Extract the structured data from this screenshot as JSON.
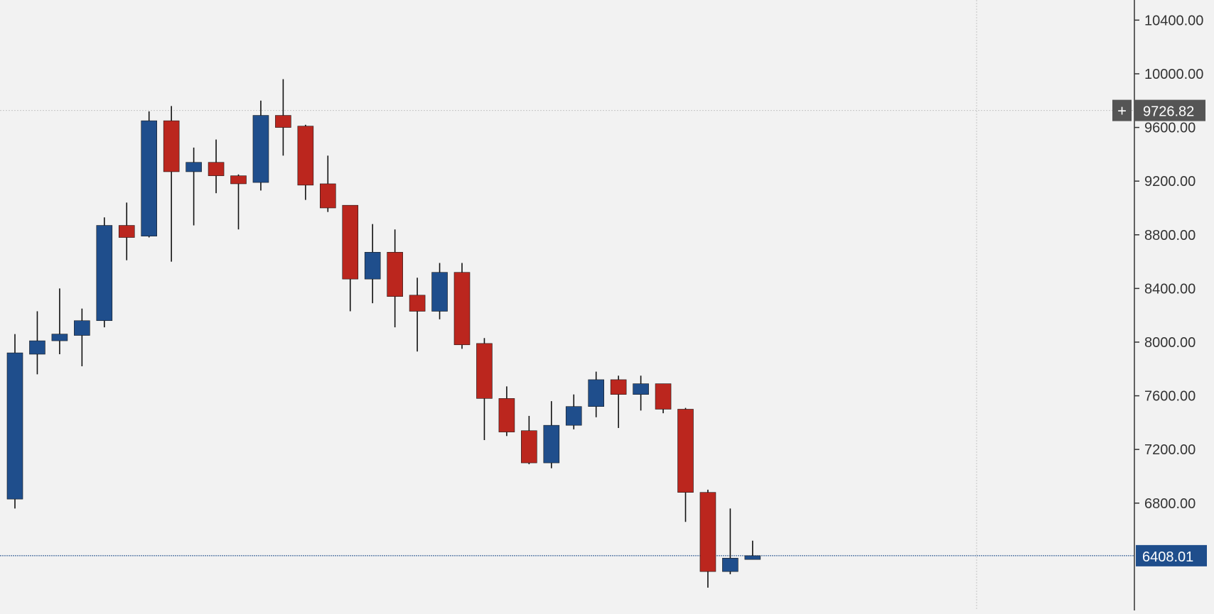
{
  "chart_data": {
    "type": "candlestick",
    "ylim": [
      6000,
      10550
    ],
    "y_ticks": [
      "10400.00",
      "10000.00",
      "9600.00",
      "9200.00",
      "8800.00",
      "8400.00",
      "8000.00",
      "7600.00",
      "7200.00",
      "6800.00"
    ],
    "y_tick_values": [
      10400,
      10000,
      9600,
      9200,
      8800,
      8400,
      8000,
      7600,
      7200,
      6800
    ],
    "crosshair": {
      "value": 9726.82,
      "label": "9726.82",
      "symbol": "+"
    },
    "last_price": {
      "value": 6408.01,
      "label": "6408.01"
    },
    "colors": {
      "up": "#1f4e8c",
      "down": "#bb261e",
      "wick": "#111111",
      "background": "#f2f2f2",
      "axis": "#333333",
      "last_price": "#1f4e8c",
      "crosshair_label": "#555555"
    },
    "candles": [
      {
        "open": 6830,
        "high": 8060,
        "low": 6760,
        "close": 7920
      },
      {
        "open": 7910,
        "high": 8230,
        "low": 7760,
        "close": 8010
      },
      {
        "open": 8010,
        "high": 8400,
        "low": 7910,
        "close": 8060
      },
      {
        "open": 8050,
        "high": 8250,
        "low": 7820,
        "close": 8160
      },
      {
        "open": 8160,
        "high": 8930,
        "low": 8110,
        "close": 8870
      },
      {
        "open": 8870,
        "high": 9040,
        "low": 8610,
        "close": 8780
      },
      {
        "open": 8790,
        "high": 9720,
        "low": 8780,
        "close": 9650
      },
      {
        "open": 9650,
        "high": 9760,
        "low": 8600,
        "close": 9270
      },
      {
        "open": 9270,
        "high": 9450,
        "low": 8870,
        "close": 9340
      },
      {
        "open": 9340,
        "high": 9510,
        "low": 9110,
        "close": 9240
      },
      {
        "open": 9240,
        "high": 9250,
        "low": 8840,
        "close": 9180
      },
      {
        "open": 9190,
        "high": 9800,
        "low": 9130,
        "close": 9690
      },
      {
        "open": 9690,
        "high": 9960,
        "low": 9390,
        "close": 9600
      },
      {
        "open": 9610,
        "high": 9620,
        "low": 9060,
        "close": 9170
      },
      {
        "open": 9180,
        "high": 9390,
        "low": 8970,
        "close": 9000
      },
      {
        "open": 9020,
        "high": 9020,
        "low": 8230,
        "close": 8470
      },
      {
        "open": 8470,
        "high": 8880,
        "low": 8290,
        "close": 8670
      },
      {
        "open": 8670,
        "high": 8840,
        "low": 8110,
        "close": 8340
      },
      {
        "open": 8350,
        "high": 8480,
        "low": 7930,
        "close": 8230
      },
      {
        "open": 8230,
        "high": 8590,
        "low": 8170,
        "close": 8520
      },
      {
        "open": 8520,
        "high": 8590,
        "low": 7950,
        "close": 7980
      },
      {
        "open": 7990,
        "high": 8030,
        "low": 7270,
        "close": 7580
      },
      {
        "open": 7580,
        "high": 7670,
        "low": 7300,
        "close": 7330
      },
      {
        "open": 7340,
        "high": 7450,
        "low": 7090,
        "close": 7100
      },
      {
        "open": 7100,
        "high": 7560,
        "low": 7060,
        "close": 7380
      },
      {
        "open": 7380,
        "high": 7610,
        "low": 7350,
        "close": 7520
      },
      {
        "open": 7520,
        "high": 7780,
        "low": 7440,
        "close": 7720
      },
      {
        "open": 7720,
        "high": 7750,
        "low": 7360,
        "close": 7610
      },
      {
        "open": 7610,
        "high": 7750,
        "low": 7490,
        "close": 7690
      },
      {
        "open": 7690,
        "high": 7690,
        "low": 7470,
        "close": 7500
      },
      {
        "open": 7500,
        "high": 7510,
        "low": 6660,
        "close": 6880
      },
      {
        "open": 6880,
        "high": 6900,
        "low": 6170,
        "close": 6290
      },
      {
        "open": 6290,
        "high": 6760,
        "low": 6270,
        "close": 6390
      },
      {
        "open": 6380,
        "high": 6520,
        "low": 6380,
        "close": 6408
      }
    ]
  }
}
